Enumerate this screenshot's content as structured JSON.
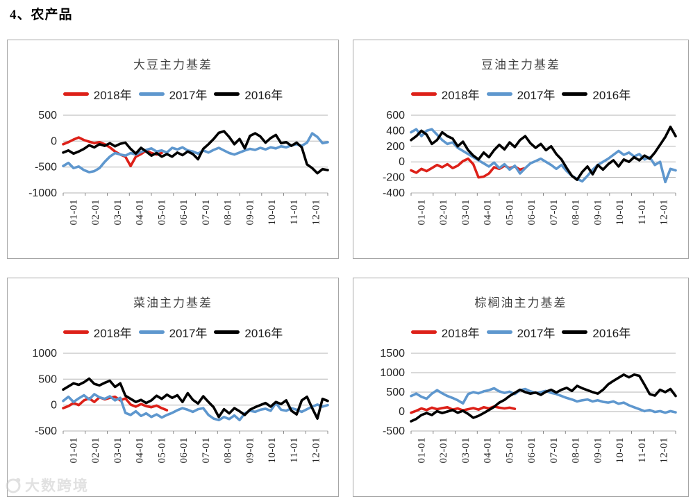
{
  "page": {
    "title": "4、农产品",
    "watermark_text": "大数跨境"
  },
  "chart_data": [
    {
      "type": "line",
      "title": "大豆主力基差",
      "ylim": [
        -1000,
        500
      ],
      "y_ticks": [
        500,
        0,
        -500,
        -1000
      ],
      "grid": true,
      "legend_position": "top",
      "x_labels": [
        "01-01",
        "02-01",
        "03-01",
        "04-01",
        "05-01",
        "06-01",
        "07-01",
        "08-01",
        "09-01",
        "10-01",
        "11-01",
        "12-01"
      ],
      "series": [
        {
          "name": "2018年",
          "color": "#dd2018",
          "values": [
            -60,
            -20,
            30,
            70,
            20,
            -10,
            -40,
            -20,
            -60,
            -120,
            -200,
            -260,
            -300,
            -480,
            -300,
            -250,
            -180,
            -230,
            -260,
            -230
          ]
        },
        {
          "name": "2017年",
          "color": "#5e97ce",
          "values": [
            -480,
            -420,
            -520,
            -490,
            -560,
            -600,
            -580,
            -520,
            -400,
            -300,
            -230,
            -260,
            -280,
            -230,
            -260,
            -210,
            -170,
            -140,
            -200,
            -180,
            -220,
            -130,
            -160,
            -120,
            -180,
            -200,
            -240,
            -180,
            -220,
            -170,
            -130,
            -180,
            -230,
            -260,
            -220,
            -180,
            -150,
            -170,
            -130,
            -160,
            -120,
            -140,
            -100,
            -120,
            -80,
            -60,
            -90,
            -30,
            150,
            80,
            -40,
            -20
          ]
        },
        {
          "name": "2016年",
          "color": "#000000",
          "values": [
            -220,
            -180,
            -240,
            -200,
            -150,
            -80,
            -120,
            -60,
            -90,
            -40,
            -100,
            -50,
            -30,
            -150,
            -240,
            -130,
            -200,
            -280,
            -230,
            -300,
            -250,
            -300,
            -220,
            -270,
            -200,
            -250,
            -350,
            -150,
            -60,
            40,
            160,
            190,
            80,
            -60,
            40,
            -140,
            100,
            150,
            90,
            -30,
            60,
            120,
            -40,
            -20,
            -90,
            -30,
            -120,
            -450,
            -520,
            -620,
            -540,
            -560
          ]
        }
      ]
    },
    {
      "type": "line",
      "title": "豆油主力基差",
      "ylim": [
        -400,
        600
      ],
      "y_ticks": [
        600,
        400,
        200,
        0,
        -200,
        -400
      ],
      "grid": true,
      "legend_position": "top",
      "x_labels": [
        "01-01",
        "02-01",
        "03-01",
        "04-01",
        "05-01",
        "06-01",
        "07-01",
        "08-01",
        "09-01",
        "10-01",
        "11-01",
        "12-01"
      ],
      "series": [
        {
          "name": "2018年",
          "color": "#dd2018",
          "values": [
            -110,
            -140,
            -90,
            -120,
            -80,
            -40,
            -70,
            -30,
            -80,
            -50,
            10,
            40,
            -30,
            -200,
            -190,
            -150,
            -70,
            -90,
            -50,
            -80,
            -60,
            -100,
            -80
          ]
        },
        {
          "name": "2017年",
          "color": "#5e97ce",
          "values": [
            380,
            420,
            330,
            400,
            420,
            350,
            280,
            230,
            250,
            180,
            140,
            100,
            60,
            20,
            -20,
            -60,
            -10,
            -80,
            -30,
            -100,
            -50,
            -150,
            -80,
            -20,
            10,
            40,
            0,
            -40,
            -90,
            -40,
            -120,
            -180,
            -220,
            -250,
            -180,
            -100,
            -40,
            0,
            40,
            90,
            140,
            90,
            120,
            70,
            100,
            30,
            60,
            -40,
            0,
            -260,
            -90,
            -110
          ]
        },
        {
          "name": "2016年",
          "color": "#000000",
          "values": [
            280,
            330,
            400,
            350,
            230,
            280,
            380,
            330,
            300,
            200,
            260,
            150,
            80,
            30,
            120,
            60,
            150,
            220,
            160,
            250,
            190,
            280,
            330,
            240,
            180,
            230,
            150,
            200,
            100,
            30,
            -80,
            -180,
            -230,
            -130,
            -60,
            -160,
            -40,
            -100,
            -30,
            20,
            -60,
            30,
            0,
            60,
            20,
            80,
            40,
            120,
            220,
            320,
            450,
            330
          ]
        }
      ]
    },
    {
      "type": "line",
      "title": "菜油主力基差",
      "ylim": [
        -500,
        1000
      ],
      "y_ticks": [
        1000,
        500,
        0,
        -500
      ],
      "grid": true,
      "legend_position": "top",
      "x_labels": [
        "01-01",
        "02-01",
        "03-01",
        "04-01",
        "05-01",
        "06-01",
        "07-01",
        "08-01",
        "09-01",
        "10-01",
        "11-01",
        "12-01"
      ],
      "series": [
        {
          "name": "2018年",
          "color": "#dd2018",
          "values": [
            -60,
            -20,
            40,
            0,
            90,
            130,
            60,
            150,
            110,
            140,
            160,
            90,
            130,
            10,
            -30,
            20,
            -20,
            -40,
            -10,
            -60,
            -100
          ]
        },
        {
          "name": "2017年",
          "color": "#5e97ce",
          "values": [
            80,
            160,
            60,
            130,
            190,
            110,
            210,
            150,
            120,
            170,
            90,
            140,
            -150,
            -190,
            -120,
            -210,
            -160,
            -230,
            -180,
            -240,
            -190,
            -150,
            -100,
            -60,
            -90,
            -130,
            -80,
            -60,
            -190,
            -260,
            -290,
            -230,
            -270,
            -200,
            -290,
            -160,
            -110,
            -130,
            -90,
            -70,
            -110,
            40,
            -90,
            -110,
            -60,
            -90,
            -130,
            -80,
            -30,
            10,
            -30,
            0
          ]
        },
        {
          "name": "2016年",
          "color": "#000000",
          "values": [
            300,
            360,
            420,
            390,
            440,
            510,
            410,
            380,
            430,
            470,
            350,
            420,
            180,
            120,
            60,
            100,
            40,
            90,
            180,
            120,
            200,
            140,
            190,
            60,
            230,
            100,
            30,
            170,
            60,
            -40,
            -230,
            -80,
            -160,
            -60,
            -120,
            -190,
            -90,
            -40,
            0,
            40,
            -30,
            60,
            20,
            90,
            -110,
            -180,
            90,
            160,
            -60,
            -260,
            120,
            80
          ]
        }
      ]
    },
    {
      "type": "line",
      "title": "棕榈油主力基差",
      "ylim": [
        -500,
        1500
      ],
      "y_ticks": [
        1500,
        1000,
        500,
        0,
        -500
      ],
      "grid": true,
      "legend_position": "top",
      "x_labels": [
        "01-01",
        "02-01",
        "03-01",
        "04-01",
        "05-01",
        "06-01",
        "07-01",
        "08-01",
        "09-01",
        "10-01",
        "11-01",
        "12-01"
      ],
      "series": [
        {
          "name": "2018年",
          "color": "#dd2018",
          "values": [
            -30,
            20,
            80,
            40,
            100,
            60,
            90,
            110,
            50,
            80,
            30,
            60,
            90,
            50,
            110,
            80,
            130,
            100,
            80,
            100,
            70
          ]
        },
        {
          "name": "2017年",
          "color": "#5e97ce",
          "values": [
            400,
            460,
            380,
            330,
            460,
            550,
            470,
            400,
            350,
            290,
            210,
            450,
            500,
            470,
            520,
            550,
            600,
            520,
            480,
            510,
            450,
            550,
            580,
            520,
            480,
            500,
            530,
            480,
            450,
            400,
            350,
            310,
            260,
            290,
            310,
            260,
            290,
            250,
            230,
            260,
            200,
            230,
            160,
            110,
            60,
            10,
            40,
            -10,
            10,
            -30,
            10,
            -20
          ]
        },
        {
          "name": "2016年",
          "color": "#000000",
          "values": [
            -250,
            -190,
            -90,
            -40,
            -90,
            10,
            -40,
            0,
            40,
            -30,
            20,
            -60,
            -160,
            -110,
            -40,
            40,
            120,
            230,
            300,
            400,
            480,
            560,
            500,
            460,
            490,
            430,
            510,
            560,
            490,
            560,
            610,
            530,
            660,
            600,
            550,
            500,
            460,
            560,
            700,
            790,
            870,
            950,
            880,
            950,
            920,
            690,
            450,
            410,
            560,
            500,
            580,
            400
          ]
        }
      ]
    }
  ]
}
